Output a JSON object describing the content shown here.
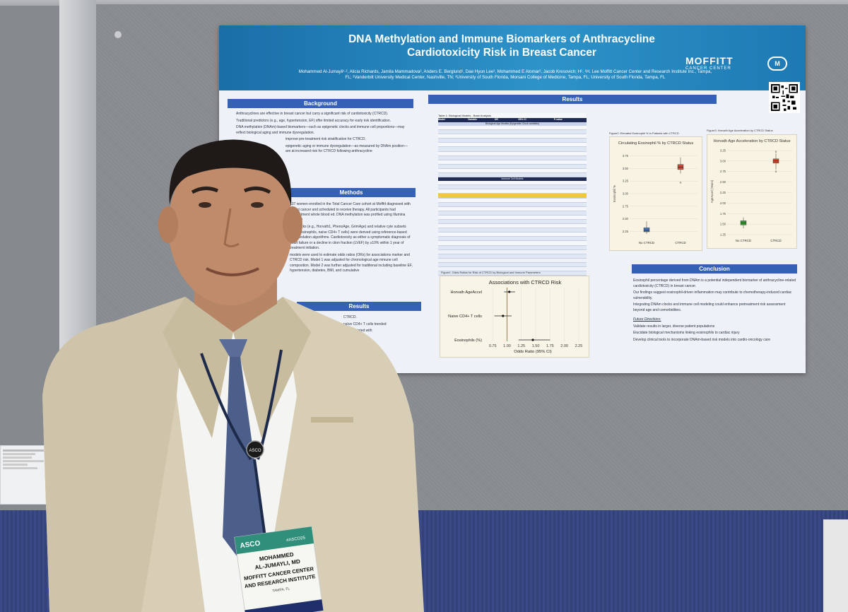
{
  "poster": {
    "title": "DNA Methylation and Immune Biomarkers of Anthracycline Cardiotoxicity Risk in Breast Cancer",
    "authors": "Mohammed Al-Jumayli¹·², Alicia Richards, Jamila Mammadova², Anders E. Berglund¹, Dae Hyun Lee², Mohammed E Alomar², Jacob Kresovich; H¹. ¹H. Lee Moffitt Cancer Center and Research Institute Inc., Tampa, FL; ²Vanderbilt University Medical Center, Nashville, TN; ³University of South Florida, Morsani College of Medicine, Tampa, FL; University of South Florida, Tampa, FL",
    "brand": {
      "name": "MOFFITT",
      "sub": "CANCER CENTER",
      "logo": "M"
    },
    "sections": {
      "background": "Background",
      "methods": "Methods",
      "results_left": "Results",
      "results": "Results",
      "conclusion": "Conclusion"
    },
    "background_text": [
      "Anthracyclines are effective in breast cancer but carry a significant risk of cardiotoxicity (CTRCD).",
      "Traditional predictors (e.g., age, hypertension, EF) offer limited accuracy for early risk identification.",
      "DNA methylation (DNAm)-based biomarkers—such as epigenetic clocks and immune cell proportions—may reflect biological aging and immune dysregulation.",
      "improve pre-treatment risk stratification for CTRCD.",
      "epigenetic aging or immune dysregulation—as measured by DNAm position—are at increased risk for CTRCD following anthracycline"
    ],
    "methods_text": [
      "137 women enrolled in the Total Cancer Care cohort at Moffitt diagnosed with breast cancer and scheduled to receive therapy. All participants had pretreatment whole blood ed. DNA methylation was profiled using Illumina EPIC v2",
      "age clocks (e.g., Horvath1, PhenoAge, GrimAge) and relative cyte subsets (e.g., eosinophils, naïve CD4+ T cells) were derived using reference-based deconvolution algorithms. Cardiotoxicity as either a symptomatic diagnosis of heart failure or a decline in ction fraction (LVEF) by ≥10% within 1 year of treatment initiation.",
      "models were used to estimate odds ratios (ORs) for associations marker and CTRCD risk. Model 1 was adjusted for chronological age mmune cell composition. Model 2 was further adjusted for traditional including baseline EF, hypertension, diabetes, BMI, and cumulative"
    ],
    "results_left_text": [
      "CTRCD.",
      "naïve CD4+ T cells trended",
      "tly associated with",
      "further study.",
      "eptibility."
    ],
    "table": {
      "caption": "Table 1: Biological Models - Base Analysis",
      "headers": [
        "Model",
        "Variable",
        "OR",
        "95% CI",
        "P-value"
      ],
      "group1_title": "Biological Age Models (Epigenetic Clock variables)",
      "group2_title": "Immune Cell Models",
      "model_labels": [
        "Model 1",
        "Model 2",
        "Model 1",
        "Model 2"
      ]
    },
    "fig_eos_caption": "Figure2: Elevated Eosinophil % in Patients with CTRCD",
    "fig_horvath_caption": "Figure3: Horvath Age Acceleration by CTRCD Status",
    "fig_forest_caption": "Figure1: Odds Ratios for Risk of CTRCD by Biological and Immune Parameters",
    "conclusion_text": [
      "Eosinophil percentage derived from DNAm is a potential independent biomarker of anthracycline-related cardiotoxicity (CTRCD) in breast cancer.",
      "Our findings suggest eosinophil-driven inflammation may contribute to chemotherapy-induced cardiac vulnerability.",
      "Integrating DNAm clocks and immune cell modeling could enhance pretreatment risk assessment beyond age and comorbidities."
    ],
    "future_title": "Future Directions:",
    "future_text": [
      "Validate results in larger, diverse patient populations",
      "Elucidate biological mechanisms linking eosinophils to cardiac injury",
      "Develop clinical tools to incorporate DNAm-based risk models into cardio-oncology care"
    ]
  },
  "chart_data": [
    {
      "type": "scatter",
      "title": "Associations with CTRCD Risk",
      "xlabel": "Odds Ratio (95% CI)",
      "ylabel": "",
      "categories": [
        "Horvath AgeAccel",
        "Naive CD4+ T cells",
        "Eosinophils (%)"
      ],
      "x_ticks": [
        "0.75",
        "1.00",
        "1.25",
        "1.50",
        "1.75",
        "2.00",
        "2.25"
      ],
      "xlim": [
        0.6,
        2.3
      ],
      "reference_line": 1.0,
      "points": [
        {
          "label": "Horvath AgeAccel",
          "or": 1.04,
          "ci": [
            0.95,
            1.14
          ]
        },
        {
          "label": "Naive CD4+ T cells",
          "or": 0.93,
          "ci": [
            0.78,
            1.08
          ]
        },
        {
          "label": "Eosinophils (%)",
          "or": 1.45,
          "ci": [
            1.2,
            1.75
          ]
        }
      ],
      "grid": true
    },
    {
      "type": "box",
      "title": "Circulating Eosinophil % by CTRCD Status",
      "xlabel": "",
      "ylabel": "Eosinophil %",
      "categories": [
        "No CTRCD",
        "CTRCD"
      ],
      "y_ticks": [
        "2.25",
        "2.50",
        "2.75",
        "3.00",
        "3.25",
        "3.50",
        "3.75"
      ],
      "ylim": [
        2.1,
        3.9
      ],
      "boxes": [
        {
          "label": "No CTRCD",
          "min": 2.2,
          "q1": 2.24,
          "median": 2.27,
          "q3": 2.32,
          "max": 2.45,
          "color": "#4a74b5"
        },
        {
          "label": "CTRCD",
          "min": 3.4,
          "q1": 3.48,
          "median": 3.53,
          "q3": 3.58,
          "max": 3.72,
          "outliers": [
            3.22
          ],
          "color": "#d9472b"
        }
      ],
      "grid": true
    },
    {
      "type": "box",
      "title": "Horvath Age Acceleration by CTRCD Status",
      "xlabel": "",
      "ylabel": "AgeAccel (Years)",
      "categories": [
        "No CTRCD",
        "CTRCD"
      ],
      "y_ticks": [
        "1.25",
        "1.50",
        "1.75",
        "2.00",
        "2.25",
        "2.50",
        "2.75",
        "3.00",
        "3.25"
      ],
      "ylim": [
        1.2,
        3.35
      ],
      "boxes": [
        {
          "label": "No CTRCD",
          "min": 1.4,
          "q1": 1.48,
          "median": 1.53,
          "q3": 1.58,
          "max": 1.66,
          "color": "#3b9b3b"
        },
        {
          "label": "CTRCD",
          "min": 2.8,
          "q1": 2.95,
          "median": 3.0,
          "q3": 3.05,
          "max": 3.18,
          "outliers": [
            2.75,
            3.22
          ],
          "color": "#d9472b"
        }
      ],
      "grid": true
    }
  ],
  "badge": {
    "org": "ASCO",
    "year": "#ASCO25",
    "name_line1": "MOHAMMED",
    "name_line2": "AL-JUMAYLI, MD",
    "affil1": "MOFFITT CANCER CENTER",
    "affil2": "AND RESEARCH INSTITUTE",
    "location": "TAMPA, FL",
    "lanyard_pin": "ASCO"
  },
  "colors": {
    "poster_header": "#2d93c9",
    "section_bar": "#3461b5",
    "suit": "#d8cdb5",
    "tie": "#4c5f8a",
    "carpet": "#3b4a86",
    "board": "#8b8e92"
  }
}
